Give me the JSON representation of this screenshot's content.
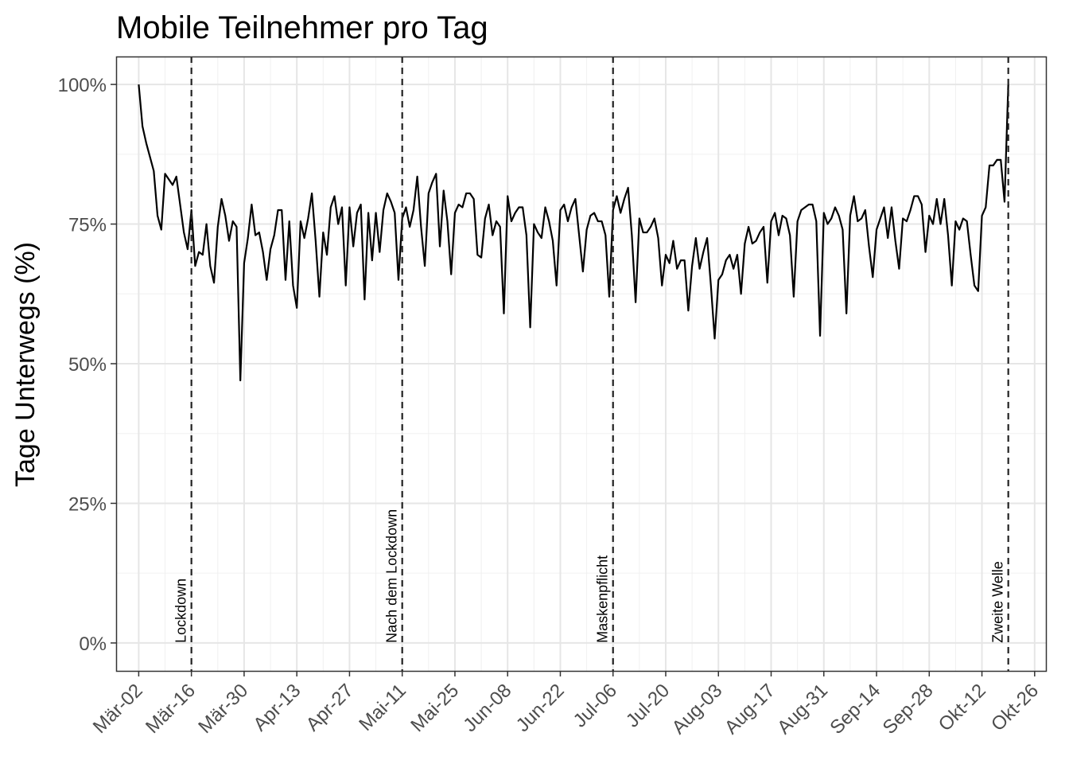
{
  "chart_data": {
    "type": "line",
    "title": "Mobile Teilnehmer pro Tag",
    "xlabel": "",
    "ylabel": "Tage Unterwegs (%)",
    "xlim": [
      "2020-02-25",
      "2020-10-29"
    ],
    "ylim": [
      -5,
      105
    ],
    "x_ticks": [
      "2020-03-02",
      "2020-03-16",
      "2020-03-30",
      "2020-04-13",
      "2020-04-27",
      "2020-05-11",
      "2020-05-25",
      "2020-06-08",
      "2020-06-22",
      "2020-07-06",
      "2020-07-20",
      "2020-08-03",
      "2020-08-17",
      "2020-08-31",
      "2020-09-14",
      "2020-09-28",
      "2020-10-12",
      "2020-10-26"
    ],
    "x_tick_labels": [
      "Mär-02",
      "Mär-16",
      "Mär-30",
      "Apr-13",
      "Apr-27",
      "Mai-11",
      "Mai-25",
      "Jun-08",
      "Jun-22",
      "Jul-06",
      "Jul-20",
      "Aug-03",
      "Aug-17",
      "Aug-31",
      "Sep-14",
      "Sep-28",
      "Okt-12",
      "Okt-26"
    ],
    "y_ticks": [
      0,
      25,
      50,
      75,
      100
    ],
    "y_tick_labels": [
      "0%",
      "25%",
      "50%",
      "75%",
      "100%"
    ],
    "grid": true,
    "line_color": "#000000",
    "start_date": "2020-03-02",
    "values": [
      100,
      92.5,
      89.5,
      87,
      84.5,
      76.5,
      74,
      84,
      83,
      82,
      83.5,
      78.5,
      73.5,
      70.5,
      77.5,
      67.5,
      70,
      69.5,
      75,
      67.5,
      64.5,
      74.5,
      79.5,
      76.5,
      72,
      75.5,
      74.5,
      47,
      68,
      72.5,
      78.5,
      73,
      73.5,
      70,
      65,
      70.5,
      73,
      77.5,
      77.5,
      65,
      75.5,
      64,
      60,
      75.5,
      72.5,
      76,
      80.5,
      72,
      62,
      73.5,
      69.5,
      78,
      80,
      75,
      78,
      64,
      78,
      71,
      77,
      78.5,
      61.5,
      77,
      68.5,
      77,
      70,
      77.5,
      80.5,
      79,
      77,
      65,
      76,
      78,
      74.5,
      77.5,
      83.5,
      74.5,
      67.5,
      80.5,
      82.5,
      84,
      71,
      81,
      75.5,
      66,
      77,
      78.5,
      78,
      80.5,
      80.5,
      79.5,
      69.5,
      69,
      76,
      78.5,
      73,
      75.5,
      74.5,
      59,
      80,
      75.5,
      77,
      78,
      78,
      73,
      56.5,
      75,
      73.5,
      72.5,
      78,
      75.5,
      72,
      64,
      77.5,
      78.5,
      75.5,
      78,
      79.5,
      73,
      66.5,
      74,
      76.5,
      77,
      75.5,
      75.5,
      73,
      62,
      77.5,
      80,
      77,
      79.5,
      81.5,
      73,
      61,
      76,
      73.5,
      73.5,
      74.5,
      76,
      72.5,
      64,
      69.5,
      68,
      72,
      67,
      68.5,
      68.5,
      59.5,
      67.5,
      72.5,
      67,
      70,
      72.5,
      64,
      54.5,
      65,
      66,
      68.5,
      69.5,
      67,
      69.5,
      62.5,
      71.5,
      74.5,
      71.5,
      72,
      73.5,
      74.5,
      64.5,
      75.5,
      77,
      73,
      76.5,
      76,
      73,
      62,
      75.5,
      77.5,
      78,
      78.5,
      78.5,
      75.5,
      55,
      77,
      75,
      76,
      78,
      76.5,
      74,
      59,
      76.5,
      80,
      75.5,
      76,
      77.5,
      71,
      65.5,
      74,
      76,
      78,
      72.5,
      78,
      72,
      67,
      76,
      75.5,
      77.5,
      80,
      80,
      78.5,
      70,
      76.5,
      75,
      79.5,
      75,
      79.5,
      73,
      64,
      75.5,
      74,
      76,
      75.5,
      69.5,
      64,
      63,
      76.5,
      78,
      85.5,
      85.5,
      86.5,
      86.5,
      79,
      100
    ],
    "annotations": [
      {
        "date": "2020-03-16",
        "label": "Lockdown"
      },
      {
        "date": "2020-05-11",
        "label": "Nach dem Lockdown"
      },
      {
        "date": "2020-07-06",
        "label": "Maskenpflicht"
      },
      {
        "date": "2020-10-19",
        "label": "Zweite Welle"
      }
    ]
  }
}
